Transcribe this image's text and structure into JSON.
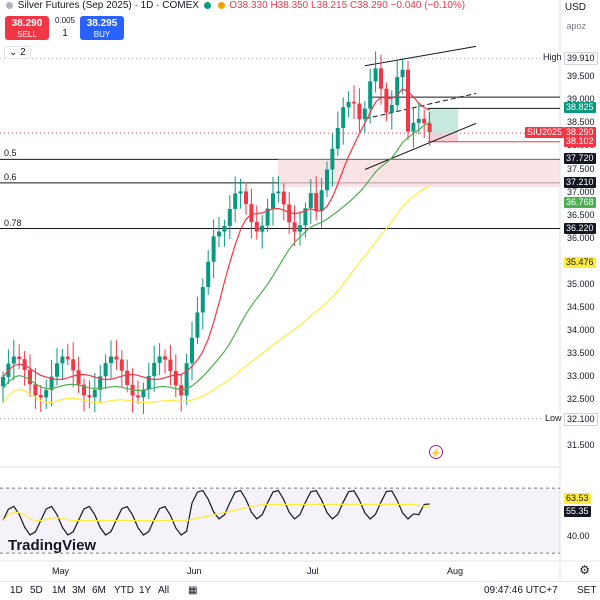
{
  "header": {
    "title": "Silver Futures (Sep 2025) · 1D · COMEX",
    "ohlc": "O38.330  H38.350  L38.215  C38.290",
    "change": "−0.040 (−0.10%)",
    "status_colors": [
      "#cccccc",
      "#089981",
      "#f59f00"
    ]
  },
  "trade": {
    "sell_price": "38.290",
    "sell_label": "SELL",
    "buy_price": "38.295",
    "buy_label": "BUY",
    "spread": "0.005",
    "qty": "1"
  },
  "indicator_collapse_label": "2",
  "currency_label": "USD",
  "scale_mode_label": "apoz",
  "logo_text": "TradingView",
  "alert_icon_glyph": "⚡",
  "chart_data": {
    "type": "candlestick",
    "symbol_label": "SIU2025",
    "y_ticks": [
      "39.500",
      "39.000",
      "38.500",
      "38.000",
      "37.500",
      "37.000",
      "36.500",
      "36.000",
      "35.500",
      "35.000",
      "34.500",
      "34.000",
      "33.500",
      "33.000",
      "32.500",
      "32.000",
      "31.500"
    ],
    "x_ticks": [
      "May",
      "Jun",
      "Jul",
      "Aug"
    ],
    "ylim": [
      31.2,
      40.2
    ],
    "price_tags": [
      {
        "text": "39.910",
        "bg": "#ffffff",
        "fg": "#131722",
        "value": 39.91
      },
      {
        "text": "38.825",
        "bg": "#089981",
        "fg": "#ffffff",
        "value": 38.825
      },
      {
        "text": "38.290",
        "bg": "#f23645",
        "fg": "#ffffff",
        "value": 38.29
      },
      {
        "text": "38.102",
        "bg": "#f23645",
        "fg": "#ffffff",
        "value": 38.102
      },
      {
        "text": "37.720",
        "bg": "#131722",
        "fg": "#ffffff",
        "value": 37.72
      },
      {
        "text": "37.210",
        "bg": "#131722",
        "fg": "#ffffff",
        "value": 37.21
      },
      {
        "text": "36.768",
        "bg": "#4caf50",
        "fg": "#ffffff",
        "value": 36.768
      },
      {
        "text": "36.220",
        "bg": "#131722",
        "fg": "#ffffff",
        "value": 36.22
      },
      {
        "text": "35.476",
        "bg": "#ffeb3b",
        "fg": "#131722",
        "value": 35.476
      },
      {
        "text": "32.100",
        "bg": "#ffffff",
        "fg": "#131722",
        "value": 32.1
      }
    ],
    "high_label": "High",
    "high_value": 39.91,
    "low_label": "Low",
    "low_value": 32.1,
    "fib_levels": [
      {
        "label": "0.5",
        "value": 37.72
      },
      {
        "label": "0.6",
        "value": 37.21
      },
      {
        "label": "0.78",
        "value": 36.22
      }
    ],
    "current_price": 38.29,
    "resistance_value": 39.07,
    "target_value": 38.825,
    "stop_value": 38.102,
    "sma_colors": {
      "fast": "#f23645",
      "mid": "#4caf50",
      "slow": "#ffeb3b"
    },
    "rsi": {
      "ylim": [
        27,
        83
      ],
      "ticks": [
        "40.00"
      ],
      "upper_band": 70,
      "lower_band": 30,
      "tags": [
        {
          "text": "63.53",
          "bg": "#ffeb3b",
          "fg": "#131722",
          "value": 63.53
        },
        {
          "text": "55.35",
          "bg": "#131722",
          "fg": "#ffffff",
          "value": 55.35
        }
      ]
    }
  },
  "toolbar": {
    "timeframes": [
      "1D",
      "5D",
      "1M",
      "3M",
      "6M",
      "YTD",
      "1Y",
      "All"
    ],
    "clock": "09:47:46 UTC+7",
    "session": "SET"
  }
}
